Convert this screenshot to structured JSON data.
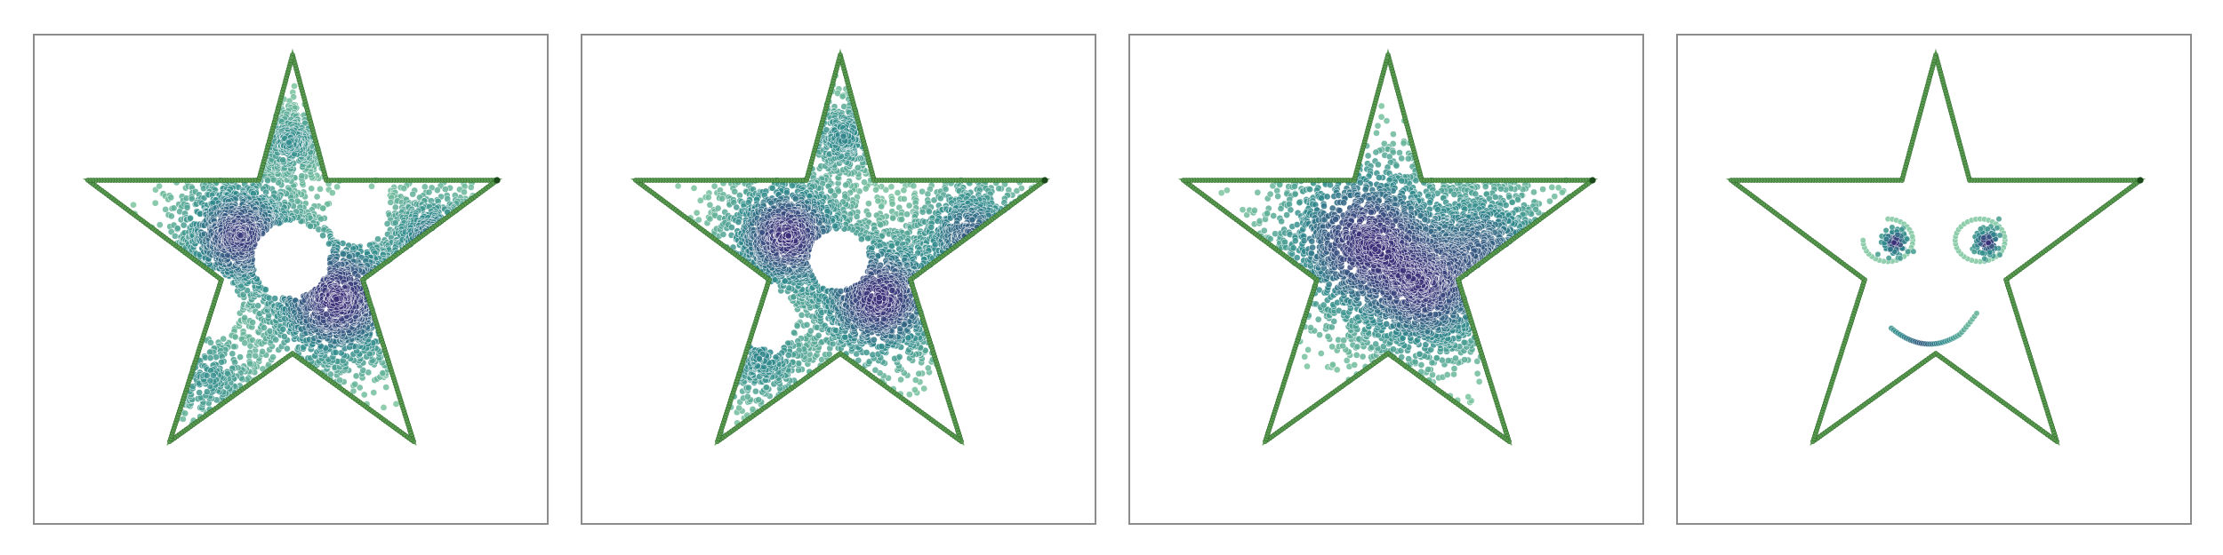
{
  "figure": {
    "panel_count": 4,
    "colors": {
      "outline": "#5a9a50",
      "outline_edge": "#2f6b2c",
      "anchor_point": "#1a4a1a",
      "density_low": "#7fc7a0",
      "density_mid": "#2f8a8c",
      "density_high": "#3b2d78",
      "panel_border": "#8c8c8c"
    },
    "panels": [
      {
        "id": "panel-1",
        "clusters": [
          {
            "u": 0.4,
            "v": 0.41,
            "s": 0.06,
            "w": 0.35
          },
          {
            "u": 0.59,
            "v": 0.54,
            "s": 0.07,
            "w": 0.4
          },
          {
            "u": 0.78,
            "v": 0.42,
            "s": 0.05,
            "w": 0.2
          },
          {
            "u": 0.5,
            "v": 0.22,
            "s": 0.035,
            "w": 0.12
          },
          {
            "u": 0.34,
            "v": 0.7,
            "s": 0.05,
            "w": 0.1
          }
        ],
        "holes": [
          {
            "u": 0.5,
            "v": 0.46,
            "r": 0.075
          },
          {
            "u": 0.33,
            "v": 0.55,
            "r": 0.07
          },
          {
            "u": 0.63,
            "v": 0.37,
            "r": 0.06
          }
        ]
      },
      {
        "id": "panel-2",
        "clusters": [
          {
            "u": 0.4,
            "v": 0.41,
            "s": 0.06,
            "w": 0.35
          },
          {
            "u": 0.58,
            "v": 0.54,
            "s": 0.065,
            "w": 0.35
          },
          {
            "u": 0.76,
            "v": 0.41,
            "s": 0.055,
            "w": 0.22
          },
          {
            "u": 0.51,
            "v": 0.21,
            "s": 0.04,
            "w": 0.12
          },
          {
            "u": 0.35,
            "v": 0.66,
            "s": 0.05,
            "w": 0.12
          }
        ],
        "holes": [
          {
            "u": 0.5,
            "v": 0.46,
            "r": 0.06
          },
          {
            "u": 0.36,
            "v": 0.58,
            "r": 0.06
          }
        ]
      },
      {
        "id": "panel-3",
        "clusters": [
          {
            "u": 0.46,
            "v": 0.42,
            "s": 0.085,
            "w": 0.45
          },
          {
            "u": 0.58,
            "v": 0.53,
            "s": 0.07,
            "w": 0.35
          },
          {
            "u": 0.7,
            "v": 0.43,
            "s": 0.065,
            "w": 0.25
          }
        ],
        "holes": []
      }
    ],
    "face": {
      "eyes": [
        {
          "u": 0.41,
          "v": 0.42
        },
        {
          "u": 0.59,
          "v": 0.42
        }
      ],
      "smile": {
        "u": 0.5,
        "v": 0.56
      }
    }
  }
}
